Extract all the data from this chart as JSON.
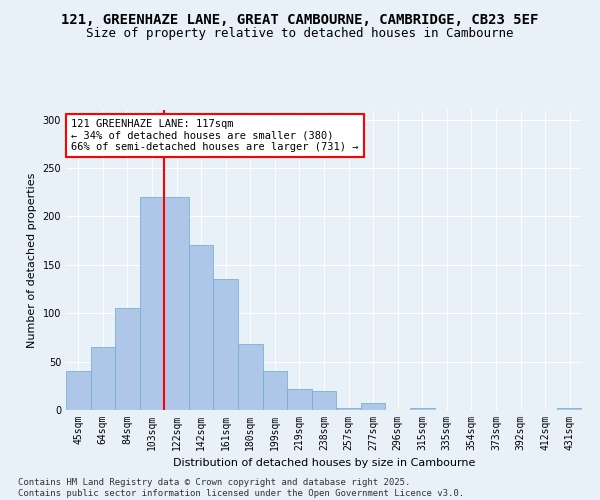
{
  "title_line1": "121, GREENHAZE LANE, GREAT CAMBOURNE, CAMBRIDGE, CB23 5EF",
  "title_line2": "Size of property relative to detached houses in Cambourne",
  "xlabel": "Distribution of detached houses by size in Cambourne",
  "ylabel": "Number of detached properties",
  "categories": [
    "45sqm",
    "64sqm",
    "84sqm",
    "103sqm",
    "122sqm",
    "142sqm",
    "161sqm",
    "180sqm",
    "199sqm",
    "219sqm",
    "238sqm",
    "257sqm",
    "277sqm",
    "296sqm",
    "315sqm",
    "335sqm",
    "354sqm",
    "373sqm",
    "392sqm",
    "412sqm",
    "431sqm"
  ],
  "values": [
    40,
    65,
    105,
    220,
    220,
    170,
    135,
    68,
    40,
    22,
    20,
    2,
    7,
    0,
    2,
    0,
    0,
    0,
    0,
    0,
    2
  ],
  "bar_color": "#aec6e8",
  "bar_edge_color": "#6aaad4",
  "redline_index": 3.5,
  "redline_color": "red",
  "annotation_text": "121 GREENHAZE LANE: 117sqm\n← 34% of detached houses are smaller (380)\n66% of semi-detached houses are larger (731) →",
  "annotation_box_color": "white",
  "annotation_box_edge": "red",
  "ylim": [
    0,
    310
  ],
  "yticks": [
    0,
    50,
    100,
    150,
    200,
    250,
    300
  ],
  "background_color": "#e8f0f8",
  "grid_color": "white",
  "footer_line1": "Contains HM Land Registry data © Crown copyright and database right 2025.",
  "footer_line2": "Contains public sector information licensed under the Open Government Licence v3.0.",
  "title_fontsize": 10,
  "subtitle_fontsize": 9,
  "axis_label_fontsize": 8,
  "tick_fontsize": 7,
  "annotation_fontsize": 7.5,
  "footer_fontsize": 6.5
}
